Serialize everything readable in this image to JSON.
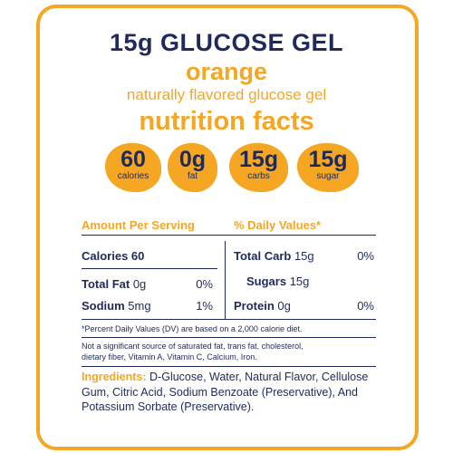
{
  "header": {
    "title": "15g GLUCOSE GEL",
    "flavor": "orange",
    "subtitle": "naturally flavored glucose gel",
    "section_title": "nutrition facts"
  },
  "badges": [
    {
      "value": "60",
      "label": "calories"
    },
    {
      "value": "0g",
      "label": "fat"
    },
    {
      "value": "15g",
      "label": "carbs"
    },
    {
      "value": "15g",
      "label": "sugar"
    }
  ],
  "table": {
    "header": [
      "Amount Per Serving",
      "% Daily Values*"
    ],
    "left_rows": [
      {
        "label": "Calories 60"
      },
      {
        "label": "Total Fat",
        "amount": "0g",
        "dv": "0%"
      },
      {
        "label": "Sodium",
        "amount": "5mg",
        "dv": "1%"
      }
    ],
    "right_rows": [
      {
        "label": "Total Carb",
        "amount": "15g",
        "dv": "0%"
      },
      {
        "label": "Sugars",
        "amount": "15g"
      },
      {
        "label": "Protein",
        "amount": "0g",
        "dv": "0%"
      }
    ]
  },
  "footnote": "*Percent Daily Values (DV) are based on a 2,000 calorie diet.",
  "disclaimer": "Not a significant source of saturated fat, trans fat, cholesterol, dietary fiber, Vitamin A, Vitamin C, Calcium, Iron.",
  "ingredients": {
    "label": "Ingredients:",
    "text": "D-Glucose, Water, Natural Flavor, Cellulose Gum, Citric Acid, Sodium Benzoate (Preservative), And Potassium Sorbate (Preservative)."
  }
}
